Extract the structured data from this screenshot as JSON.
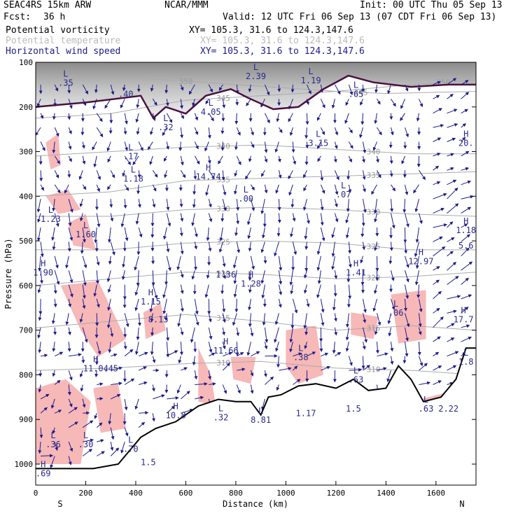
{
  "header": {
    "model": "SEAC4RS 15km ARW",
    "org": "NCAR/MMM",
    "init": "Init: 00 UTC Thu 05 Sep 13",
    "fcst_label": "Fcst:",
    "fcst_value": "36 h",
    "valid": "Valid: 12 UTC Fri 06 Sep 13 (07 CDT Fri 06 Sep 13)",
    "fields": [
      {
        "name": "Potential vorticity",
        "xy": "XY= 105.3, 31.6 to 124.3,147.6"
      },
      {
        "name": "Potential temperature",
        "xy": "XY= 105.3, 31.6 to 124.3,147.6"
      },
      {
        "name": "Horizontal wind speed",
        "xy": "XY= 105.3, 31.6 to 124.3,147.6"
      }
    ]
  },
  "colors": {
    "pv_fill": "#f7b8b8",
    "tropopause": "#4a1040",
    "theta": "#aaaaaa",
    "wind": "#1c1c8c",
    "terrain": "#000000"
  },
  "chart_data": {
    "type": "cross-section",
    "xlabel": "Distance (km)",
    "ylabel": "Pressure (hPa)",
    "xlim": [
      0,
      1760
    ],
    "ylim": [
      1050,
      100
    ],
    "x_ticks": [
      "0",
      "200",
      "400",
      "600",
      "800",
      "1000",
      "1200",
      "1400",
      "1600"
    ],
    "y_ticks": [
      "100",
      "200",
      "300",
      "400",
      "500",
      "600",
      "700",
      "800",
      "900",
      "1000"
    ],
    "end_labels": {
      "left": "S",
      "right": "N"
    },
    "theta_contours": [
      {
        "label": "350",
        "points": [
          [
            0,
            130
          ],
          [
            400,
            135
          ],
          [
            800,
            150
          ],
          [
            1200,
            165
          ],
          [
            1500,
            150
          ],
          [
            1760,
            140
          ]
        ]
      },
      {
        "label": "345",
        "points": [
          [
            0,
            225
          ],
          [
            300,
            215
          ],
          [
            600,
            185
          ],
          [
            900,
            175
          ],
          [
            1200,
            165
          ],
          [
            1400,
            170
          ],
          [
            1760,
            165
          ]
        ]
      },
      {
        "label": "340",
        "points": [
          [
            0,
            310
          ],
          [
            300,
            300
          ],
          [
            600,
            290
          ],
          [
            900,
            285
          ],
          [
            1200,
            295
          ],
          [
            1500,
            305
          ],
          [
            1760,
            305
          ]
        ]
      },
      {
        "label": "335",
        "points": [
          [
            0,
            400
          ],
          [
            300,
            390
          ],
          [
            600,
            365
          ],
          [
            900,
            360
          ],
          [
            1200,
            355
          ],
          [
            1500,
            350
          ],
          [
            1760,
            345
          ]
        ]
      },
      {
        "label": "330",
        "points": [
          [
            0,
            445
          ],
          [
            300,
            445
          ],
          [
            600,
            430
          ],
          [
            900,
            425
          ],
          [
            1200,
            430
          ],
          [
            1500,
            440
          ],
          [
            1760,
            445
          ]
        ]
      },
      {
        "label": "325",
        "points": [
          [
            0,
            520
          ],
          [
            300,
            520
          ],
          [
            600,
            505
          ],
          [
            900,
            500
          ],
          [
            1200,
            505
          ],
          [
            1500,
            520
          ],
          [
            1760,
            520
          ]
        ]
      },
      {
        "label": "320",
        "points": [
          [
            0,
            600
          ],
          [
            300,
            585
          ],
          [
            600,
            570
          ],
          [
            900,
            575
          ],
          [
            1200,
            585
          ],
          [
            1500,
            580
          ],
          [
            1760,
            570
          ]
        ]
      },
      {
        "label": "315",
        "points": [
          [
            0,
            695
          ],
          [
            300,
            680
          ],
          [
            600,
            665
          ],
          [
            900,
            680
          ],
          [
            1200,
            700
          ],
          [
            1500,
            690
          ],
          [
            1760,
            700
          ]
        ]
      },
      {
        "label": "310",
        "points": [
          [
            0,
            790
          ],
          [
            300,
            785
          ],
          [
            600,
            775
          ],
          [
            900,
            770
          ],
          [
            1200,
            785
          ],
          [
            1500,
            790
          ],
          [
            1760,
            800
          ]
        ]
      }
    ],
    "tropopause_pv2": [
      [
        0,
        200
      ],
      [
        200,
        190
      ],
      [
        420,
        175
      ],
      [
        470,
        225
      ],
      [
        520,
        200
      ],
      [
        600,
        215
      ],
      [
        680,
        175
      ],
      [
        780,
        160
      ],
      [
        850,
        180
      ],
      [
        950,
        205
      ],
      [
        1050,
        200
      ],
      [
        1150,
        160
      ],
      [
        1250,
        130
      ],
      [
        1350,
        145
      ],
      [
        1500,
        155
      ],
      [
        1650,
        150
      ],
      [
        1760,
        150
      ]
    ],
    "terrain": [
      [
        0,
        1010
      ],
      [
        230,
        1010
      ],
      [
        330,
        1000
      ],
      [
        420,
        940
      ],
      [
        480,
        920
      ],
      [
        560,
        905
      ],
      [
        650,
        870
      ],
      [
        730,
        855
      ],
      [
        800,
        860
      ],
      [
        860,
        860
      ],
      [
        900,
        890
      ],
      [
        930,
        850
      ],
      [
        980,
        845
      ],
      [
        1050,
        825
      ],
      [
        1120,
        820
      ],
      [
        1200,
        830
      ],
      [
        1270,
        810
      ],
      [
        1330,
        835
      ],
      [
        1400,
        830
      ],
      [
        1450,
        780
      ],
      [
        1500,
        810
      ],
      [
        1550,
        860
      ],
      [
        1620,
        850
      ],
      [
        1680,
        810
      ],
      [
        1720,
        740
      ],
      [
        1760,
        740
      ]
    ],
    "pv_highs": [
      {
        "label": "L",
        "value": ".35",
        "x": 120,
        "p": 135
      },
      {
        "label": "",
        "value": ".40",
        "x": 360,
        "p": 160
      },
      {
        "label": "L",
        "value": ".32",
        "x": 520,
        "p": 235
      },
      {
        "label": "L",
        "value": "4.05",
        "x": 700,
        "p": 200
      },
      {
        "label": "L",
        "value": "2.39",
        "x": 880,
        "p": 120
      },
      {
        "label": "L",
        "value": "1.19",
        "x": 1100,
        "p": 130
      },
      {
        "label": "L",
        "value": ".65",
        "x": 1280,
        "p": 160
      },
      {
        "label": "L",
        "value": ".17",
        "x": 380,
        "p": 300
      },
      {
        "label": "L",
        "value": "3.15",
        "x": 1130,
        "p": 270
      },
      {
        "label": "H",
        "value": "20.",
        "x": 1720,
        "p": 270
      },
      {
        "label": "L",
        "value": "1.18",
        "x": 390,
        "p": 350
      },
      {
        "label": "H",
        "value": "14.74",
        "x": 690,
        "p": 345
      },
      {
        "label": "L",
        "value": ".00",
        "x": 840,
        "p": 395
      },
      {
        "label": "L",
        "value": ".07",
        "x": 1230,
        "p": 385
      },
      {
        "label": "L",
        "value": "1.23",
        "x": 60,
        "p": 440
      },
      {
        "label": "L",
        "value": "1.60",
        "x": 200,
        "p": 475
      },
      {
        "label": "H",
        "value": "1.18",
        "x": 1720,
        "p": 465
      },
      {
        "label": "",
        "value": "5.6",
        "x": 1720,
        "p": 500
      },
      {
        "label": "H",
        "value": "12.97",
        "x": 1540,
        "p": 535
      },
      {
        "label": "H",
        "value": "1.90",
        "x": 30,
        "p": 560
      },
      {
        "label": "",
        "value": "1.36",
        "x": 760,
        "p": 565
      },
      {
        "label": "H",
        "value": "1.28",
        "x": 860,
        "p": 585
      },
      {
        "label": "H",
        "value": "1.41",
        "x": 1280,
        "p": 560
      },
      {
        "label": "H",
        "value": "1.15",
        "x": 460,
        "p": 625
      },
      {
        "label": "",
        "value": "8.15",
        "x": 490,
        "p": 665
      },
      {
        "label": "L",
        "value": ".06",
        "x": 1440,
        "p": 650
      },
      {
        "label": "H",
        "value": "17.7",
        "x": 1710,
        "p": 665
      },
      {
        "label": "H",
        "value": "11.66",
        "x": 760,
        "p": 735
      },
      {
        "label": "L",
        "value": ".38",
        "x": 1060,
        "p": 750
      },
      {
        "label": "H",
        "value": "11.04",
        "x": 240,
        "p": 775
      },
      {
        "label": "",
        "value": ".45",
        "x": 300,
        "p": 775
      },
      {
        "label": "L",
        "value": ".63",
        "x": 1280,
        "p": 800
      },
      {
        "label": "L",
        "value": "1.8",
        "x": 1720,
        "p": 760
      },
      {
        "label": "H",
        "value": "10.8",
        "x": 560,
        "p": 880
      },
      {
        "label": "L",
        "value": ".32",
        "x": 740,
        "p": 885
      },
      {
        "label": "L",
        "value": "8.81",
        "x": 900,
        "p": 890
      },
      {
        "label": "",
        "value": "1.17",
        "x": 1080,
        "p": 875
      },
      {
        "label": "",
        "value": "1.5",
        "x": 1270,
        "p": 865
      },
      {
        "label": "L",
        "value": ".63",
        "x": 1560,
        "p": 865
      },
      {
        "label": "",
        "value": "2.22",
        "x": 1650,
        "p": 865
      },
      {
        "label": "L",
        "value": ".36",
        "x": 70,
        "p": 945
      },
      {
        "label": "L",
        "value": ".30",
        "x": 200,
        "p": 945
      },
      {
        "label": "L",
        "value": ".70",
        "x": 380,
        "p": 955
      },
      {
        "label": "",
        "value": "1.5",
        "x": 450,
        "p": 985
      },
      {
        "label": "H",
        "value": ".69",
        "x": 30,
        "p": 1010
      }
    ],
    "pv_positive_regions": [
      [
        [
          40,
          280
        ],
        [
          90,
          260
        ],
        [
          100,
          330
        ],
        [
          60,
          340
        ]
      ],
      [
        [
          40,
          400
        ],
        [
          130,
          385
        ],
        [
          180,
          430
        ],
        [
          90,
          440
        ]
      ],
      [
        [
          130,
          460
        ],
        [
          200,
          440
        ],
        [
          240,
          520
        ],
        [
          150,
          510
        ]
      ],
      [
        [
          100,
          600
        ],
        [
          250,
          590
        ],
        [
          360,
          720
        ],
        [
          250,
          760
        ],
        [
          180,
          700
        ]
      ],
      [
        [
          430,
          660
        ],
        [
          500,
          640
        ],
        [
          520,
          700
        ],
        [
          440,
          720
        ]
      ],
      [
        [
          1000,
          700
        ],
        [
          1120,
          690
        ],
        [
          1150,
          800
        ],
        [
          1050,
          820
        ],
        [
          1000,
          780
        ]
      ],
      [
        [
          1260,
          660
        ],
        [
          1370,
          670
        ],
        [
          1350,
          720
        ],
        [
          1260,
          710
        ]
      ],
      [
        [
          1420,
          620
        ],
        [
          1560,
          610
        ],
        [
          1560,
          720
        ],
        [
          1450,
          730
        ]
      ],
      [
        [
          650,
          740
        ],
        [
          700,
          800
        ],
        [
          720,
          870
        ],
        [
          650,
          860
        ]
      ],
      [
        [
          780,
          760
        ],
        [
          880,
          760
        ],
        [
          860,
          820
        ],
        [
          790,
          810
        ]
      ],
      [
        [
          0,
          830
        ],
        [
          120,
          810
        ],
        [
          220,
          860
        ],
        [
          180,
          1000
        ],
        [
          0,
          1000
        ]
      ],
      [
        [
          230,
          830
        ],
        [
          330,
          820
        ],
        [
          360,
          920
        ],
        [
          260,
          930
        ]
      ],
      [
        [
          1500,
          860
        ],
        [
          1640,
          840
        ],
        [
          1650,
          870
        ],
        [
          1520,
          880
        ]
      ]
    ],
    "wind_field": "vector arrows, mostly southward at mid-levels with northward flow near surface and upper right"
  }
}
